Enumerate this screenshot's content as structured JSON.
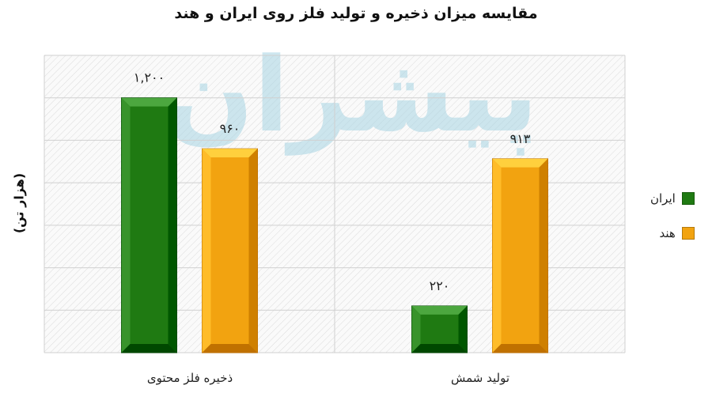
{
  "chart_data": {
    "type": "bar",
    "title": "مقایسه میزان ذخیره و تولید فلز روی ایران و هند",
    "ylabel": "(هزار تن)",
    "xlabel": "",
    "categories": [
      "ذخیره فلز محتوی",
      "تولید شمش"
    ],
    "series": [
      {
        "name": "ایران",
        "values": [
          1200,
          220
        ],
        "labels": [
          "۱,۲۰۰",
          "۲۲۰"
        ],
        "color": "#1f7a12"
      },
      {
        "name": "هند",
        "values": [
          960,
          913
        ],
        "labels": [
          "۹۶۰",
          "۹۱۳"
        ],
        "color": "#f2a310"
      }
    ],
    "ylim": [
      0,
      1400
    ],
    "grid": true,
    "legend_position": "right"
  },
  "watermark": {
    "text": "پیشران",
    "colors": [
      "#f6c56c",
      "#a7d4e3"
    ]
  }
}
